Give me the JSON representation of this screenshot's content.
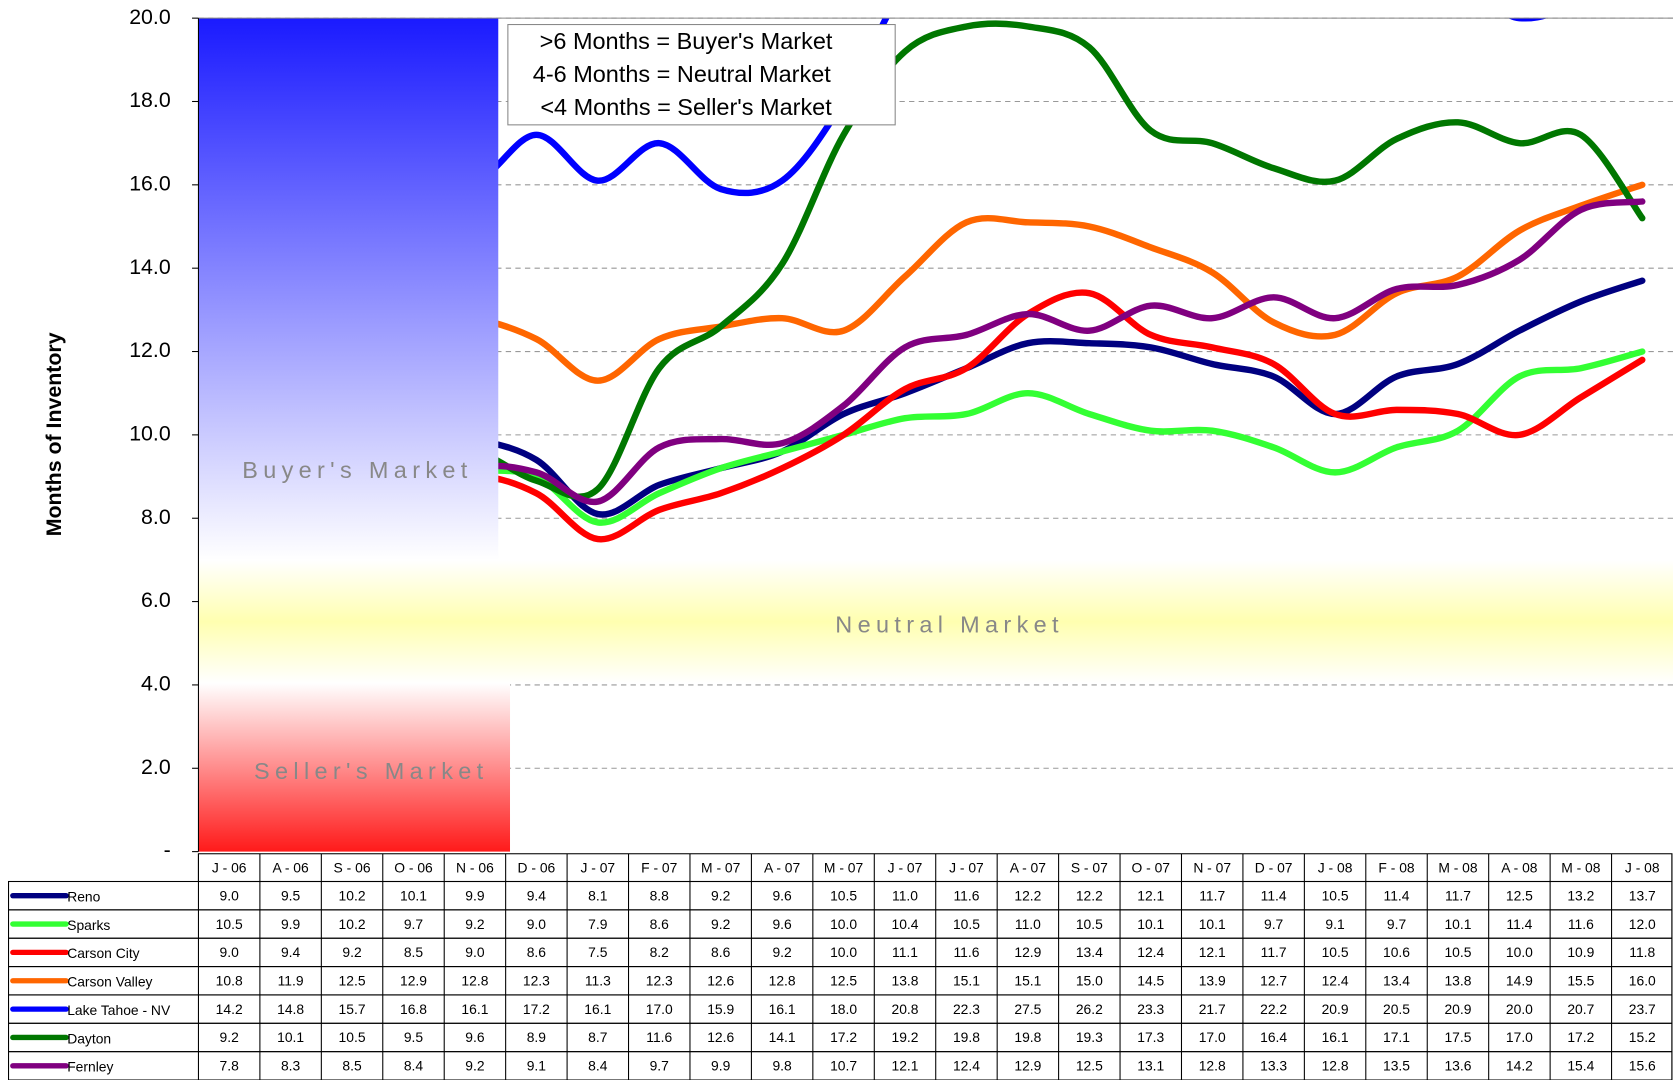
{
  "chart_data": {
    "type": "line",
    "y_label": "Months of Inventory",
    "annotations": [
      ">6 Months = Buyer's Market",
      "4-6 Months = Neutral Market",
      "<4 Months = Seller's Market"
    ],
    "zones": [
      "Buyer's Market",
      "Neutral Market",
      "Seller's Market"
    ],
    "categories": [
      "J - 06",
      "A - 06",
      "S - 06",
      "O - 06",
      "N - 06",
      "D - 06",
      "J - 07",
      "F - 07",
      "M - 07",
      "A - 07",
      "M - 07",
      "J - 07",
      "J - 07",
      "A - 07",
      "S - 07",
      "O - 07",
      "N - 07",
      "D - 07",
      "J - 08",
      "F - 08",
      "M - 08",
      "A - 08",
      "M - 08",
      "J - 08"
    ],
    "ylim": [
      0,
      20
    ],
    "yticks": [
      {
        "value": 0,
        "label": "-"
      },
      {
        "value": 2,
        "label": "2.0"
      },
      {
        "value": 4,
        "label": "4.0"
      },
      {
        "value": 6,
        "label": "6.0"
      },
      {
        "value": 8,
        "label": "8.0"
      },
      {
        "value": 10,
        "label": "10.0"
      },
      {
        "value": 12,
        "label": "12.0"
      },
      {
        "value": 14,
        "label": "14.0"
      },
      {
        "value": 16,
        "label": "16.0"
      },
      {
        "value": 18,
        "label": "18.0"
      },
      {
        "value": 20,
        "label": "20.0"
      }
    ],
    "grid": true,
    "series": [
      {
        "name": "Reno",
        "color": "#000080",
        "values": [
          9.0,
          9.5,
          10.2,
          10.1,
          9.9,
          9.4,
          8.1,
          8.8,
          9.2,
          9.6,
          10.5,
          11.0,
          11.6,
          12.2,
          12.2,
          12.1,
          11.7,
          11.4,
          10.5,
          11.4,
          11.7,
          12.5,
          13.2,
          13.7
        ],
        "value_labels": [
          "9.0",
          "9.5",
          "10.2",
          "10.1",
          "9.9",
          "9.4",
          "8.1",
          "8.8",
          "9.2",
          "9.6",
          "10.5",
          "11.0",
          "11.6",
          "12.2",
          "12.2",
          "12.1",
          "11.7",
          "11.4",
          "10.5",
          "11.4",
          "11.7",
          "12.5",
          "13.2",
          "13.7"
        ]
      },
      {
        "name": "Sparks",
        "color": "#33ff33",
        "values": [
          10.5,
          9.9,
          10.2,
          9.7,
          9.2,
          9.0,
          7.9,
          8.6,
          9.2,
          9.6,
          10.0,
          10.4,
          10.5,
          11.0,
          10.5,
          10.1,
          10.1,
          9.7,
          9.1,
          9.7,
          10.1,
          11.4,
          11.6,
          12.0
        ],
        "value_labels": [
          "10.5",
          "9.9",
          "10.2",
          "9.7",
          "9.2",
          "9.0",
          "7.9",
          "8.6",
          "9.2",
          "9.6",
          "10.0",
          "10.4",
          "10.5",
          "11.0",
          "10.5",
          "10.1",
          "10.1",
          "9.7",
          "9.1",
          "9.7",
          "10.1",
          "11.4",
          "11.6",
          "12.0"
        ]
      },
      {
        "name": "Carson City",
        "color": "#ff0000",
        "values": [
          9.0,
          9.4,
          9.2,
          8.5,
          9.0,
          8.6,
          7.5,
          8.2,
          8.6,
          9.2,
          10.0,
          11.1,
          11.6,
          12.9,
          13.4,
          12.4,
          12.1,
          11.7,
          10.5,
          10.6,
          10.5,
          10.0,
          10.9,
          11.8
        ],
        "value_labels": [
          "9.0",
          "9.4",
          "9.2",
          "8.5",
          "9.0",
          "8.6",
          "7.5",
          "8.2",
          "8.6",
          "9.2",
          "10.0",
          "11.1",
          "11.6",
          "12.9",
          "13.4",
          "12.4",
          "12.1",
          "11.7",
          "10.5",
          "10.6",
          "10.5",
          "10.0",
          "10.9",
          "11.8"
        ]
      },
      {
        "name": "Carson Valley",
        "color": "#ff6600",
        "values": [
          10.8,
          11.9,
          12.5,
          12.9,
          12.8,
          12.3,
          11.3,
          12.3,
          12.6,
          12.8,
          12.5,
          13.8,
          15.1,
          15.1,
          15.0,
          14.5,
          13.9,
          12.7,
          12.4,
          13.4,
          13.8,
          14.9,
          15.5,
          16.0
        ],
        "value_labels": [
          "10.8",
          "11.9",
          "12.5",
          "12.9",
          "12.8",
          "12.3",
          "11.3",
          "12.3",
          "12.6",
          "12.8",
          "12.5",
          "13.8",
          "15.1",
          "15.1",
          "15.0",
          "14.5",
          "13.9",
          "12.7",
          "12.4",
          "13.4",
          "13.8",
          "14.9",
          "15.5",
          "16.0"
        ]
      },
      {
        "name": "Lake Tahoe - NV",
        "color": "#0000ff",
        "values": [
          14.2,
          14.8,
          15.7,
          16.8,
          16.1,
          17.2,
          16.1,
          17.0,
          15.9,
          16.1,
          18.0,
          20.8,
          22.3,
          27.5,
          26.2,
          23.3,
          21.7,
          22.2,
          20.9,
          20.5,
          20.9,
          20.0,
          20.7,
          23.7
        ],
        "value_labels": [
          "14.2",
          "14.8",
          "15.7",
          "16.8",
          "16.1",
          "17.2",
          "16.1",
          "17.0",
          "15.9",
          "16.1",
          "18.0",
          "20.8",
          "22.3",
          "27.5",
          "26.2",
          "23.3",
          "21.7",
          "22.2",
          "20.9",
          "20.5",
          "20.9",
          "20.0",
          "20.7",
          "23.7"
        ]
      },
      {
        "name": "Dayton",
        "color": "#007700",
        "values": [
          9.2,
          10.1,
          10.5,
          9.5,
          9.6,
          8.9,
          8.7,
          11.6,
          12.6,
          14.1,
          17.2,
          19.2,
          19.8,
          19.8,
          19.3,
          17.3,
          17.0,
          16.4,
          16.1,
          17.1,
          17.5,
          17.0,
          17.2,
          15.2
        ],
        "value_labels": [
          "9.2",
          "10.1",
          "10.5",
          "9.5",
          "9.6",
          "8.9",
          "8.7",
          "11.6",
          "12.6",
          "14.1",
          "17.2",
          "19.2",
          "19.8",
          "19.8",
          "19.3",
          "17.3",
          "17.0",
          "16.4",
          "16.1",
          "17.1",
          "17.5",
          "17.0",
          "17.2",
          "15.2"
        ]
      },
      {
        "name": "Fernley",
        "color": "#800080",
        "values": [
          7.8,
          8.3,
          8.5,
          8.4,
          9.2,
          9.1,
          8.4,
          9.7,
          9.9,
          9.8,
          10.7,
          12.1,
          12.4,
          12.9,
          12.5,
          13.1,
          12.8,
          13.3,
          12.8,
          13.5,
          13.6,
          14.2,
          15.4,
          15.6
        ],
        "value_labels": [
          "7.8",
          "8.3",
          "8.5",
          "8.4",
          "9.2",
          "9.1",
          "8.4",
          "9.7",
          "9.9",
          "9.8",
          "10.7",
          "12.1",
          "12.4",
          "12.9",
          "12.5",
          "13.1",
          "12.8",
          "13.3",
          "12.8",
          "13.5",
          "13.6",
          "14.2",
          "15.4",
          "15.6"
        ]
      }
    ]
  }
}
